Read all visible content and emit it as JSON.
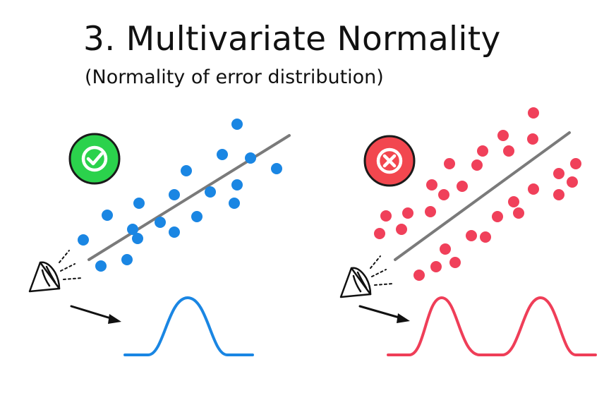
{
  "title": "3. Multivariate Normality",
  "subtitle": "(Normality of error distribution)",
  "panels": [
    {
      "status": "good",
      "status_icon": "checkmark-icon",
      "badge_color": "#2bd24c",
      "dot_color": "#1a86e3",
      "curve_color": "#1a86e3",
      "line_color": "#7a7a7a",
      "distribution": "unimodal"
    },
    {
      "status": "bad",
      "status_icon": "cross-icon",
      "badge_color": "#f2474f",
      "dot_color": "#f0405a",
      "curve_color": "#ef3e58",
      "line_color": "#7a7a7a",
      "distribution": "bimodal"
    }
  ]
}
